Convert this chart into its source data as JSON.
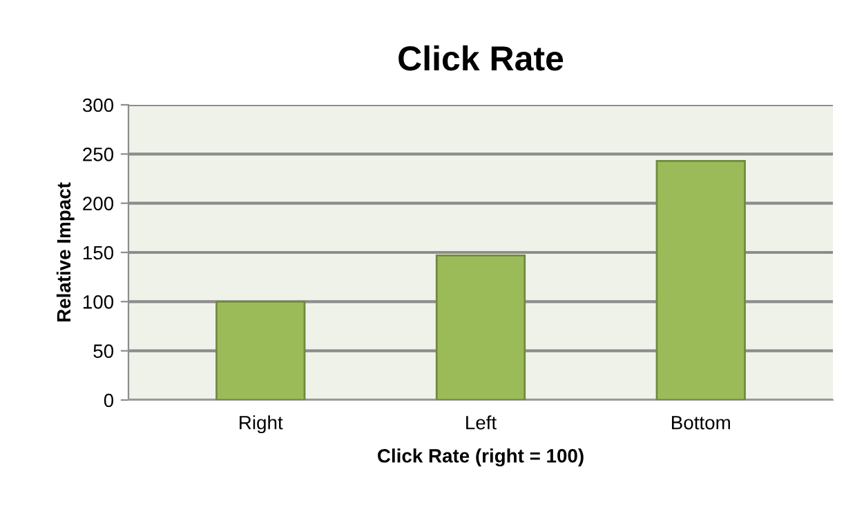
{
  "chart_data": {
    "type": "bar",
    "title": "Click Rate",
    "xlabel": "Click Rate (right = 100)",
    "ylabel": "Relative Impact",
    "categories": [
      "Right",
      "Left",
      "Bottom"
    ],
    "values": [
      100,
      147,
      243
    ],
    "color": "#9bbb59",
    "ylim": [
      0,
      300
    ],
    "yticks": [
      0,
      50,
      100,
      150,
      200,
      250,
      300
    ],
    "grid": "y",
    "legend": false
  }
}
